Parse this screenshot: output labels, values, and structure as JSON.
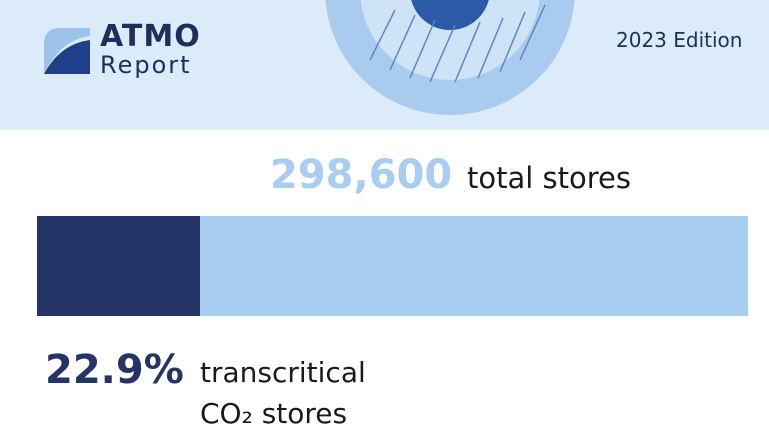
{
  "header": {
    "brand": "ATMO",
    "subtitle": "Report",
    "edition": "2023 Edition"
  },
  "stats": {
    "total": {
      "value": "298,600",
      "label": "total stores"
    },
    "share": {
      "value": 22.9,
      "label": "22.9%",
      "description": [
        "transcritical",
        "CO₂ stores"
      ]
    }
  }
}
